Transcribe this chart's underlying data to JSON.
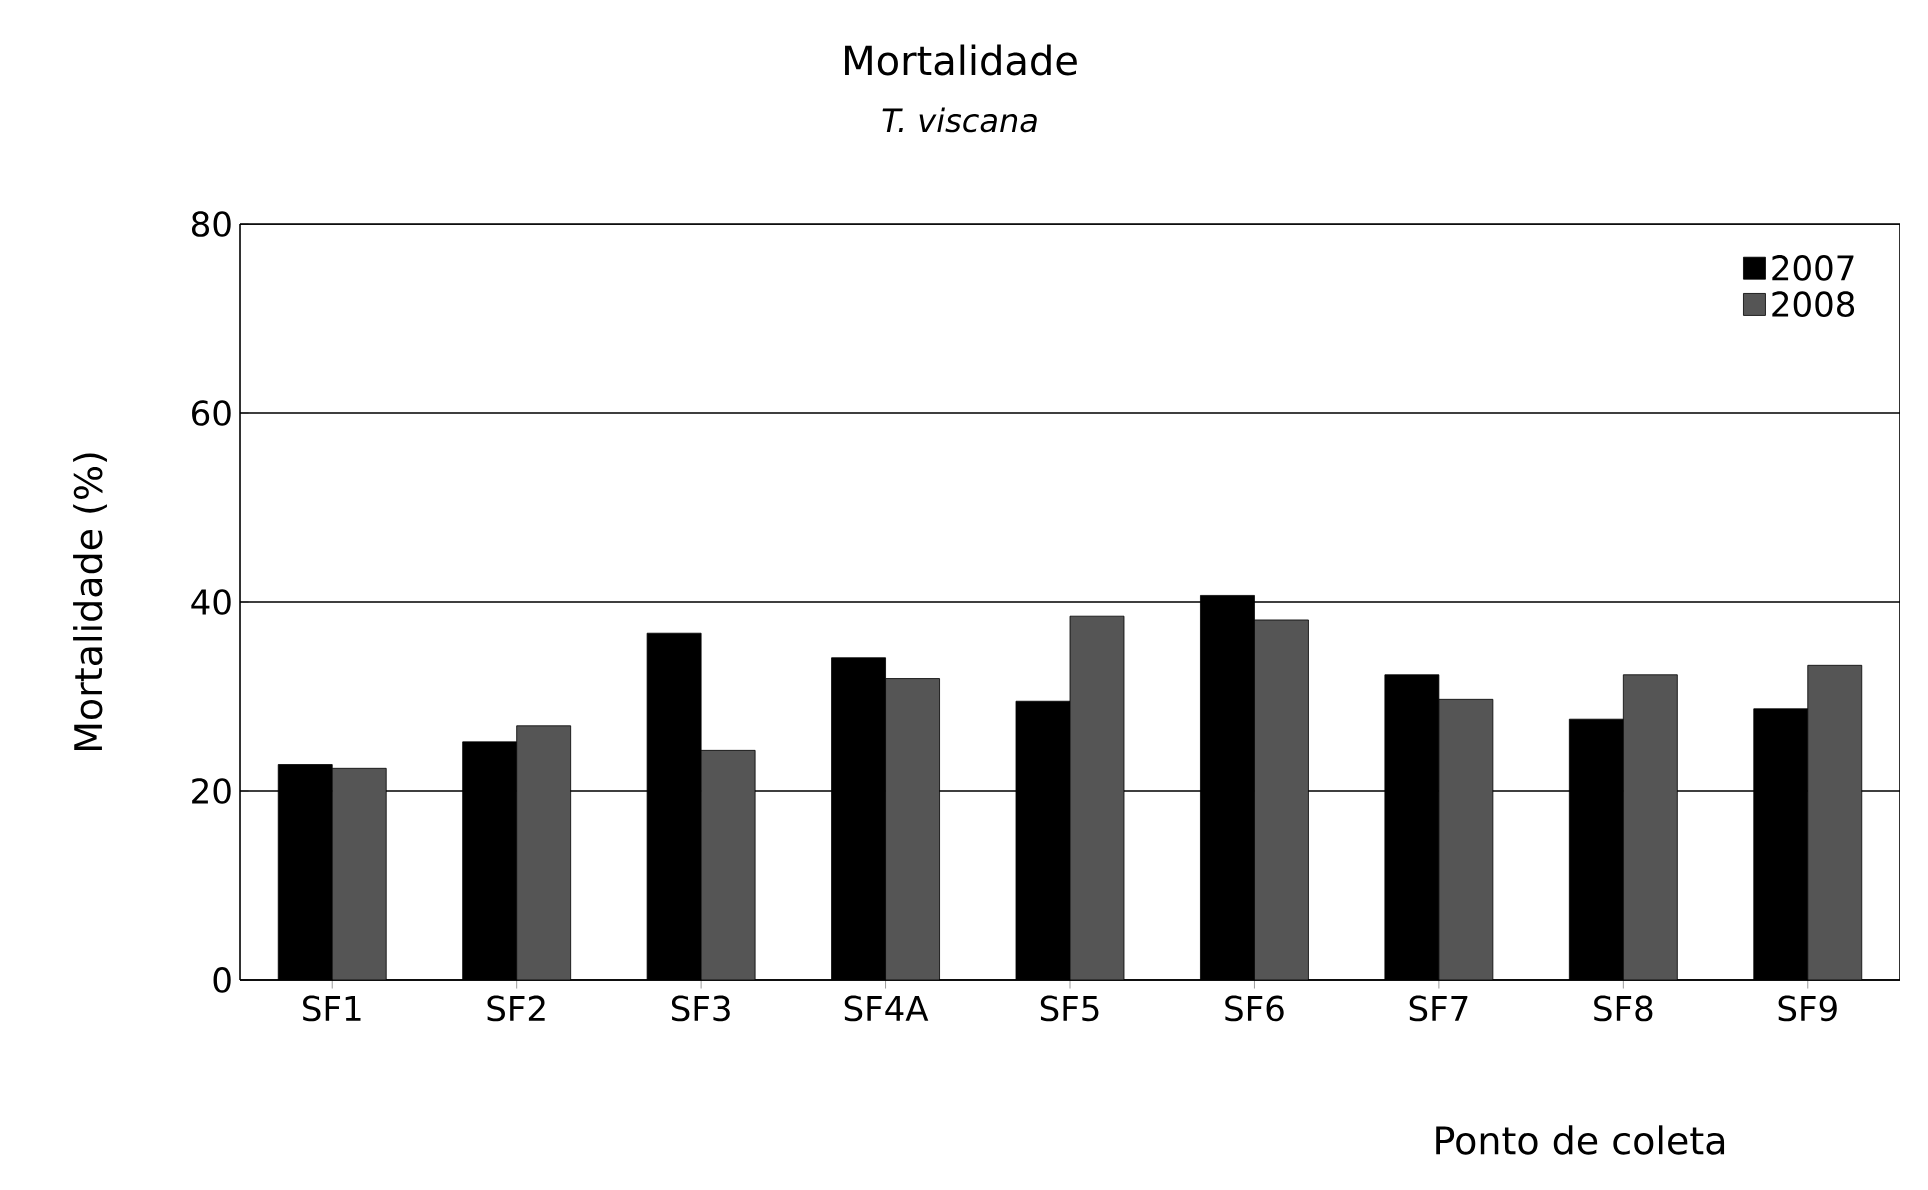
{
  "chart_data": {
    "type": "bar",
    "title": "Mortalidade",
    "subtitle": "T. viscana",
    "xlabel": "Ponto de coleta",
    "ylabel": "Mortalidade (%)",
    "categories": [
      "SF1",
      "SF2",
      "SF3",
      "SF4A",
      "SF5",
      "SF6",
      "SF7",
      "SF8",
      "SF9"
    ],
    "series": [
      {
        "name": "2007",
        "color": "#000000",
        "values": [
          22.8,
          25.2,
          36.7,
          34.1,
          29.5,
          40.7,
          32.3,
          27.6,
          28.7
        ]
      },
      {
        "name": "2008",
        "color": "#555555",
        "values": [
          22.4,
          26.9,
          24.3,
          31.9,
          38.5,
          38.1,
          29.7,
          32.3,
          33.3
        ]
      }
    ],
    "ylim": [
      0,
      80
    ],
    "yticks": [
      0,
      20,
      40,
      60,
      80
    ],
    "grid": "y",
    "legend": "top right"
  }
}
